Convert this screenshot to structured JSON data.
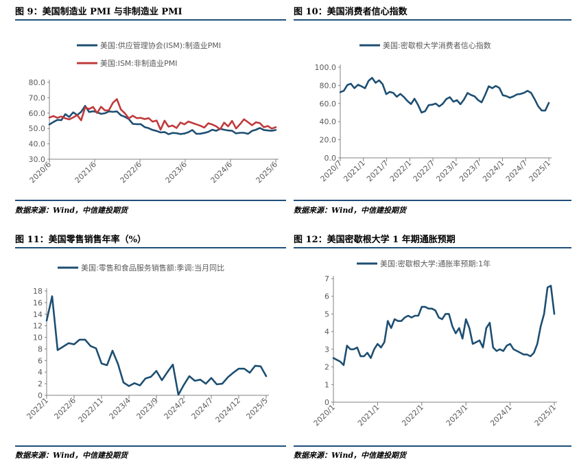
{
  "colors": {
    "navy": "#1d4e72",
    "red": "#c0393b",
    "rule": "#1f4e79",
    "axis": "#808080",
    "text": "#595959"
  },
  "panels": [
    {
      "title": "图 9：美国制造业 PMI 与非制造业 PMI",
      "source": "数据来源：Wind，中信建投期货",
      "chart_data": {
        "type": "line",
        "title": "",
        "xlabel": "",
        "ylabel": "",
        "ylim": [
          30,
          80
        ],
        "yticks": [
          "30.0",
          "40.0",
          "50.0",
          "60.0",
          "70.0",
          "80.0"
        ],
        "xticks": [
          "2020/6",
          "2021/6",
          "2022/6",
          "2023/6",
          "2024/6",
          "2025/6"
        ],
        "legend_position": "top",
        "grid": false,
        "series": [
          {
            "name": "美国:供应管理协会(ISM):制造业PMI",
            "color": "#1d4e72",
            "values": [
              52.6,
              54.2,
              55.6,
              55.4,
              59.3,
              57.5,
              60.5,
              58.7,
              60.8,
              64.7,
              60.7,
              61.2,
              60.6,
              59.5,
              59.9,
              61.1,
              60.8,
              61.1,
              58.6,
              57.6,
              56.1,
              53.0,
              52.8,
              52.8,
              50.9,
              50.2,
              49.0,
              48.4,
              47.4,
              47.7,
              46.3,
              47.1,
              46.9,
              46.4,
              46.7,
              47.6,
              49.0,
              46.5,
              46.6,
              47.1,
              47.8,
              49.2,
              48.5,
              49.8,
              49.2,
              48.7,
              48.5,
              46.8,
              47.2,
              47.2,
              46.5,
              48.4,
              49.2,
              50.3,
              49.0,
              48.7,
              48.5,
              49.0
            ],
            "line_style": "solid"
          },
          {
            "name": "美国:ISM:非制造业PMI",
            "color": "#c0393b",
            "values": [
              57.1,
              58.1,
              56.9,
              57.8,
              56.6,
              55.9,
              57.2,
              58.7,
              55.3,
              63.7,
              62.7,
              64.0,
              60.1,
              64.1,
              61.7,
              61.9,
              66.7,
              69.1,
              62.3,
              59.9,
              56.5,
              58.3,
              56.7,
              56.9,
              56.1,
              56.7,
              54.4,
              55.2,
              49.2,
              55.1,
              51.2,
              51.9,
              50.3,
              53.9,
              52.7,
              54.5,
              53.6,
              52.7,
              51.8,
              50.6,
              53.4,
              52.6,
              51.4,
              49.4,
              53.8,
              51.4,
              54.9,
              50.0,
              52.8,
              56.0,
              54.1,
              52.1,
              54.0,
              53.5,
              50.8,
              51.6,
              49.9,
              50.8
            ],
            "line_style": "solid"
          }
        ]
      }
    },
    {
      "title": "图 10：美国消费者信心指数",
      "source": "数据来源：Wind，中信建投期货",
      "chart_data": {
        "type": "line",
        "title": "",
        "xlabel": "",
        "ylabel": "",
        "ylim": [
          0,
          100
        ],
        "yticks": [
          "0.0",
          "20.0",
          "40.0",
          "60.0",
          "80.0",
          "100.0"
        ],
        "xticks": [
          "2020/7",
          "2021/1",
          "2021/7",
          "2022/1",
          "2022/7",
          "2023/1",
          "2023/7",
          "2024/1",
          "2024/7",
          "2025/1"
        ],
        "legend_position": "top",
        "grid": false,
        "series": [
          {
            "name": "美国:密歇根大学消费者信心指数",
            "color": "#1d4e72",
            "values": [
              72.5,
              74.1,
              80.4,
              81.8,
              76.9,
              80.7,
              79.0,
              76.8,
              84.9,
              88.3,
              82.9,
              85.5,
              81.2,
              70.3,
              72.8,
              71.7,
              67.4,
              70.6,
              67.2,
              62.8,
              59.4,
              65.2,
              58.4,
              50.0,
              51.5,
              58.2,
              58.6,
              59.9,
              56.8,
              59.7,
              64.9,
              67.0,
              62.0,
              63.7,
              59.2,
              64.4,
              71.6,
              69.4,
              67.9,
              63.8,
              61.3,
              69.7,
              79.0,
              76.9,
              79.4,
              77.2,
              69.1,
              68.2,
              66.4,
              67.9,
              70.1,
              70.5,
              71.8,
              74.0,
              71.7,
              64.7,
              57.0,
              52.2,
              52.2,
              60.7
            ],
            "line_style": "solid"
          }
        ]
      }
    },
    {
      "title": "图 11：美国零售销售年率（%）",
      "source": "数据来源：Wind，中信建投期货",
      "chart_data": {
        "type": "line",
        "title": "",
        "xlabel": "",
        "ylabel": "",
        "ylim": [
          0,
          18
        ],
        "yticks": [
          "0",
          "2",
          "4",
          "6",
          "8",
          "10",
          "12",
          "14",
          "16",
          "18"
        ],
        "xticks": [
          "2022/1",
          "2022/6",
          "2022/11",
          "2023/4",
          "2023/9",
          "2024/2",
          "2024/7",
          "2024/12",
          "2025/5"
        ],
        "legend_position": "top",
        "grid": false,
        "series": [
          {
            "name": "美国:零售和食品服务销售额:季调:当月同比",
            "color": "#1d4e72",
            "values": [
              12.9,
              17.1,
              7.8,
              8.4,
              9.0,
              8.8,
              9.6,
              9.6,
              8.5,
              8.1,
              5.5,
              5.2,
              7.7,
              5.4,
              2.2,
              1.6,
              2.1,
              1.7,
              2.9,
              3.2,
              4.2,
              2.6,
              4.0,
              5.3,
              0.1,
              1.8,
              3.3,
              2.5,
              2.7,
              2.0,
              3.0,
              1.9,
              2.0,
              3.1,
              3.9,
              4.6,
              4.6,
              3.9,
              5.1,
              5.0,
              3.3
            ],
            "line_style": "solid"
          }
        ]
      }
    },
    {
      "title": "图 12：美国密歇根大学 1 年期通胀预期",
      "source": "数据来源：Wind，中信建投期货",
      "chart_data": {
        "type": "line",
        "title": "",
        "xlabel": "",
        "ylabel": "",
        "ylim": [
          0,
          7
        ],
        "yticks": [
          "0",
          "1",
          "2",
          "3",
          "4",
          "5",
          "6",
          "7"
        ],
        "xticks": [
          "2020/1",
          "2021/1",
          "2022/1",
          "2023/1",
          "2024/1",
          "2025/1"
        ],
        "legend_position": "top",
        "grid": false,
        "series": [
          {
            "name": "美国:密歇根大学:通胀率预期:1年",
            "color": "#1d4e72",
            "values": [
              2.5,
              2.4,
              2.3,
              2.1,
              3.2,
              3.0,
              3.0,
              3.1,
              2.6,
              2.6,
              2.8,
              2.5,
              3.0,
              3.3,
              3.1,
              3.4,
              4.6,
              4.2,
              4.7,
              4.6,
              4.6,
              4.8,
              4.9,
              4.8,
              4.9,
              4.9,
              5.4,
              5.4,
              5.3,
              5.3,
              5.2,
              4.8,
              4.7,
              5.0,
              5.0,
              4.3,
              3.9,
              4.2,
              3.6,
              4.7,
              4.2,
              3.3,
              3.4,
              3.5,
              3.1,
              4.2,
              4.5,
              3.1,
              2.9,
              3.0,
              2.9,
              3.2,
              3.3,
              3.0,
              2.9,
              2.8,
              2.7,
              2.7,
              2.6,
              2.8,
              3.3,
              4.3,
              5.0,
              6.5,
              6.6,
              5.0
            ],
            "line_style": "solid"
          }
        ]
      }
    }
  ]
}
